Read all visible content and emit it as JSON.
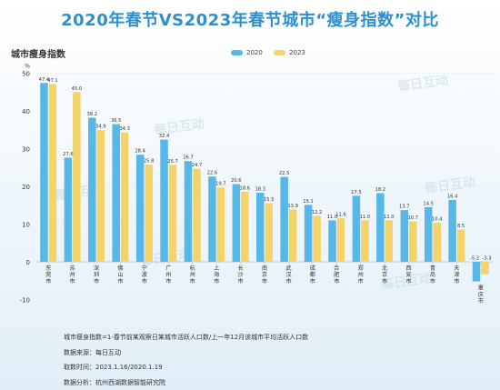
{
  "title": "2020年春节VS2023年春节城市“瘦身指数”对比",
  "axis_title": "城市瘦身指数",
  "y_unit": "%",
  "watermark": "每日互动",
  "colors": {
    "title": "#2c8fce",
    "s2020": "#57b7e6",
    "s2023": "#f5d36b",
    "grid": "#d8dde2",
    "label": "#333333"
  },
  "chart_data": {
    "type": "bar",
    "categories": [
      "东莞市",
      "苏州市",
      "深圳市",
      "佛山市",
      "宁波市",
      "广州市",
      "杭州市",
      "上海市",
      "长沙市",
      "南京市",
      "武汉市",
      "成都市",
      "合肥市",
      "郑州市",
      "北京市",
      "西安市",
      "青岛市",
      "天津市",
      "重庆市"
    ],
    "series": [
      {
        "name": "2020",
        "values": [
          47.4,
          27.6,
          38.2,
          36.5,
          28.4,
          32.4,
          26.7,
          22.6,
          20.6,
          18.3,
          22.5,
          15.1,
          11.0,
          17.5,
          18.2,
          13.7,
          14.5,
          16.4,
          -5.2
        ]
      },
      {
        "name": "2023",
        "values": [
          47.1,
          45.0,
          34.9,
          34.3,
          25.8,
          25.7,
          24.7,
          19.7,
          18.6,
          15.5,
          13.9,
          12.2,
          11.6,
          11.0,
          11.0,
          10.7,
          10.4,
          8.5,
          -3.3
        ]
      }
    ],
    "value_labels": [
      [
        "47.4",
        "27.6",
        "38.2",
        "36.5",
        "28.4",
        "32.4",
        "26.7",
        "22.6",
        "20.6",
        "18.3",
        "22.5",
        "15.1",
        "11.0",
        "17.5",
        "18.2",
        "13.7",
        "14.5",
        "16.4",
        "-5.2"
      ],
      [
        "47.1",
        "45.0",
        "34.9",
        "34.3",
        "25.8",
        "25.7",
        "24.7",
        "19.7",
        "18.6",
        "15.5",
        "13.9",
        "12.2",
        "11.6",
        "11.0",
        "11.0",
        "10.7",
        "10.4",
        "8.5",
        "-3.3"
      ]
    ],
    "yticks": [
      -10,
      0,
      10,
      20,
      30,
      40,
      50
    ],
    "ylim": [
      -10,
      50
    ],
    "grid": true,
    "legend": "top-center"
  },
  "notes": [
    "城市瘦身指数=1-春节前某观察日某城市活跃人口数/上一年12月该城市平均活跃人口数",
    "数据来源：每日互动",
    "取数时间：2023.1.16/2020.1.19",
    "数据分析：杭州西湖数据智能研究院"
  ]
}
